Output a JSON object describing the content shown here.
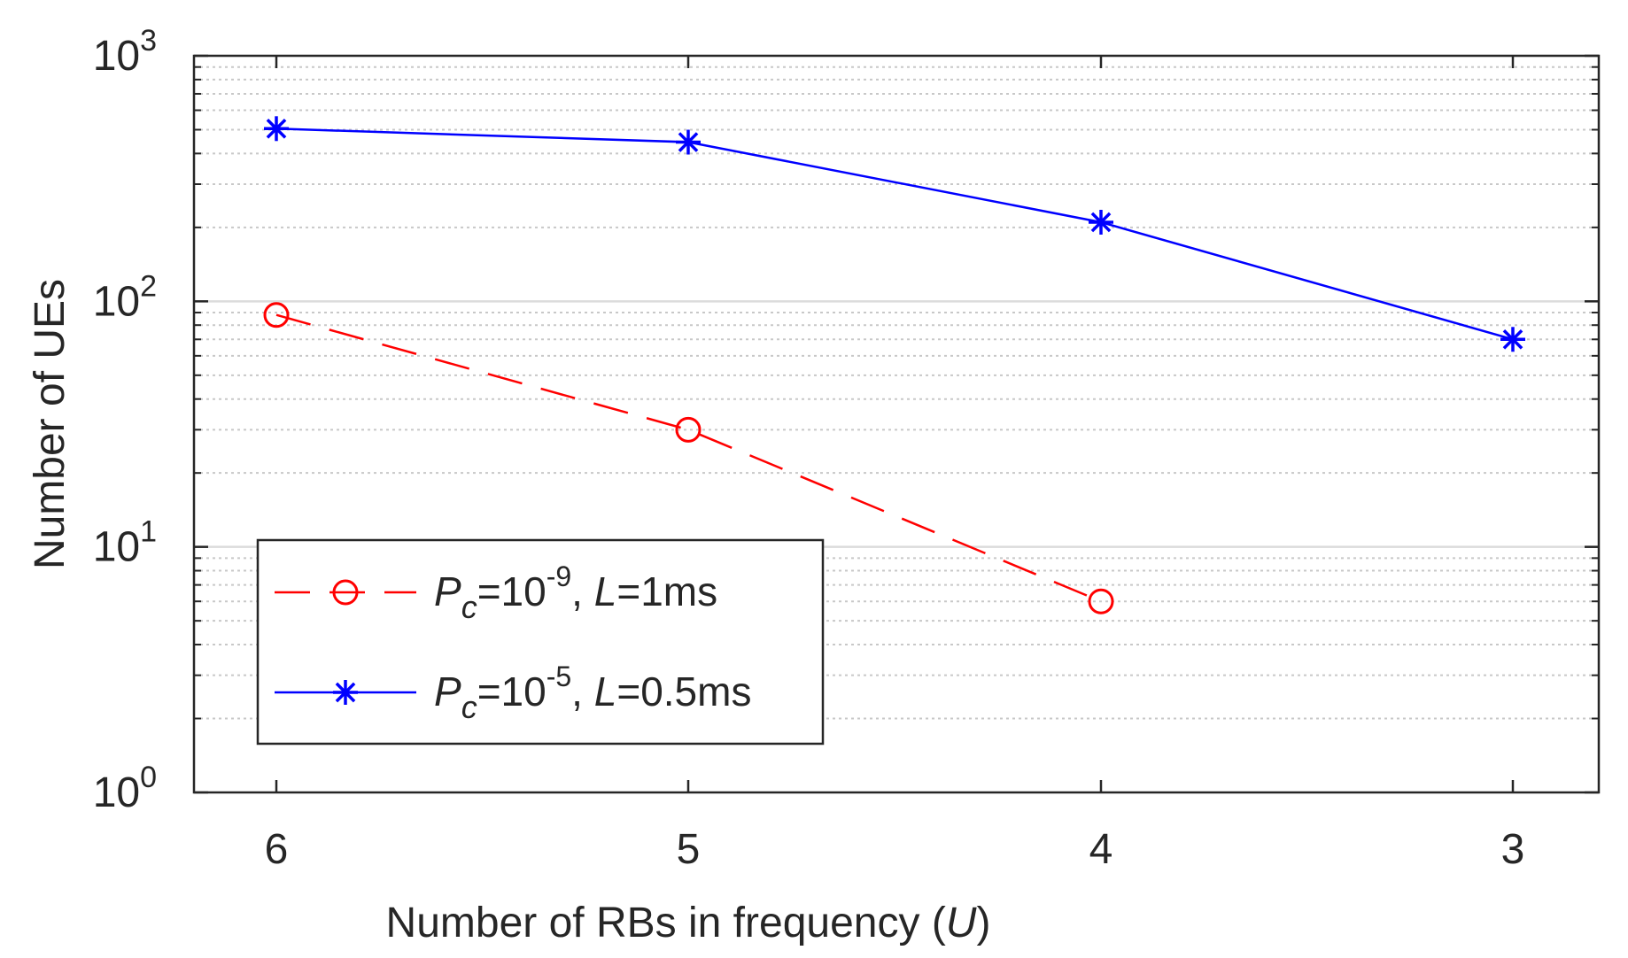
{
  "chart_data": {
    "type": "line",
    "title": "",
    "xlabel": {
      "prefix": "Number of RBs in frequency (",
      "symbol": "U",
      "suffix": ")"
    },
    "ylabel": "Number of UEs",
    "x_categories": [
      6,
      5,
      4,
      3
    ],
    "x_tick_labels": [
      "6",
      "5",
      "4",
      "3"
    ],
    "y_scale": "log",
    "ylim": [
      1,
      1000
    ],
    "y_tick_labels": [
      {
        "base": "10",
        "exp": "0",
        "value": 1
      },
      {
        "base": "10",
        "exp": "1",
        "value": 10
      },
      {
        "base": "10",
        "exp": "2",
        "value": 100
      },
      {
        "base": "10",
        "exp": "3",
        "value": 1000
      }
    ],
    "grid": {
      "major": true,
      "minor": true
    },
    "legend_position": "bottom-left",
    "series": [
      {
        "name": "Pc=10^-9, L=1ms",
        "legend": {
          "p": "P",
          "sub": "c",
          "eq": "=10",
          "exp": "-9",
          "sep": ", ",
          "l": "L",
          "rest": "=1ms"
        },
        "color": "#ff0000",
        "line_style": "dashed",
        "marker": "circle",
        "x": [
          6,
          5,
          4
        ],
        "values": [
          88,
          30,
          6
        ]
      },
      {
        "name": "Pc=10^-5, L=0.5ms",
        "legend": {
          "p": "P",
          "sub": "c",
          "eq": "=10",
          "exp": "-5",
          "sep": ", ",
          "l": "L",
          "rest": "=0.5ms"
        },
        "color": "#0000ff",
        "line_style": "solid",
        "marker": "asterisk",
        "x": [
          6,
          5,
          4,
          3
        ],
        "values": [
          505,
          445,
          210,
          70
        ]
      }
    ]
  }
}
